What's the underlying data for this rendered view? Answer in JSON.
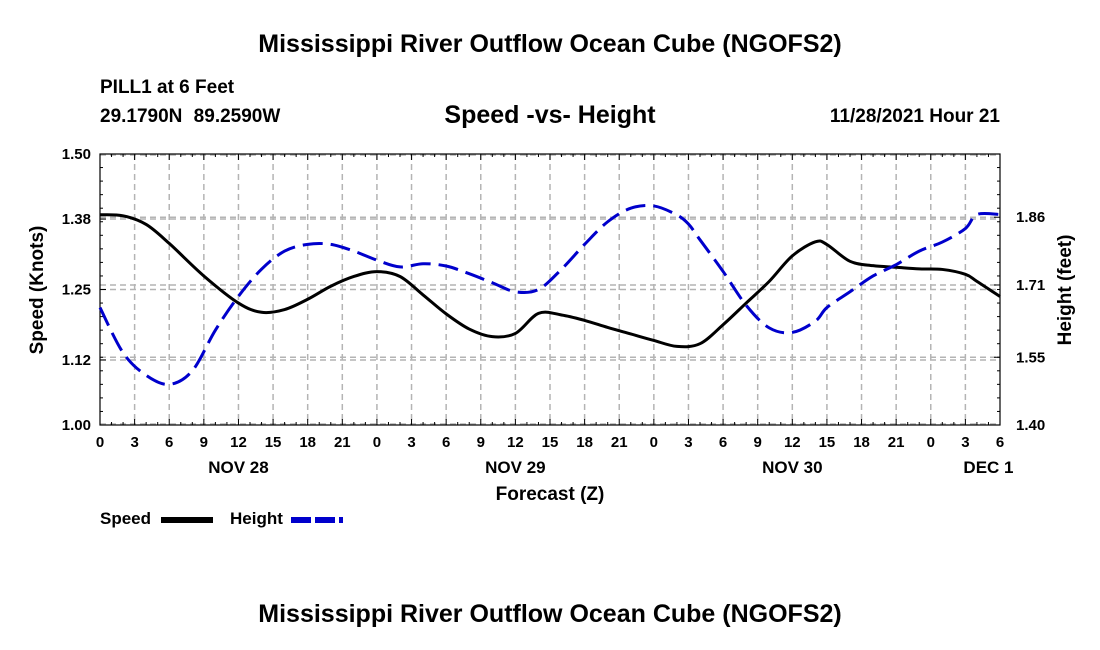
{
  "header": {
    "title": "Mississippi River Outflow Ocean Cube (NGOFS2)",
    "station": "PILL1 at 6 Feet",
    "coordinates": "29.1790N  89.2590W",
    "subtitle": "Speed -vs- Height",
    "datetime": "11/28/2021 Hour 21"
  },
  "footer": {
    "title": "Mississippi River Outflow Ocean Cube (NGOFS2)"
  },
  "legend": {
    "speed_label": "Speed",
    "height_label": "Height"
  },
  "colors": {
    "speed": "#000000",
    "height": "#0000cc",
    "grid": "#b4b4b4"
  },
  "chart_data": {
    "type": "line",
    "title": "Speed -vs- Height",
    "xlabel": "Forecast (Z)",
    "ylabel": "Speed (Knots)",
    "y2label": "Height (feet)",
    "x_unit": "hours from NOV 28 00Z",
    "xlim": [
      0,
      78
    ],
    "ylim": [
      1.0,
      1.5
    ],
    "y2lim": [
      1.4,
      2.0
    ],
    "grid": true,
    "x_ticks": [
      {
        "x": 0,
        "label": "0"
      },
      {
        "x": 3,
        "label": "3"
      },
      {
        "x": 6,
        "label": "6"
      },
      {
        "x": 9,
        "label": "9"
      },
      {
        "x": 12,
        "label": "12"
      },
      {
        "x": 15,
        "label": "15"
      },
      {
        "x": 18,
        "label": "18"
      },
      {
        "x": 21,
        "label": "21"
      },
      {
        "x": 24,
        "label": "0"
      },
      {
        "x": 27,
        "label": "3"
      },
      {
        "x": 30,
        "label": "6"
      },
      {
        "x": 33,
        "label": "9"
      },
      {
        "x": 36,
        "label": "12"
      },
      {
        "x": 39,
        "label": "15"
      },
      {
        "x": 42,
        "label": "18"
      },
      {
        "x": 45,
        "label": "21"
      },
      {
        "x": 48,
        "label": "0"
      },
      {
        "x": 51,
        "label": "3"
      },
      {
        "x": 54,
        "label": "6"
      },
      {
        "x": 57,
        "label": "9"
      },
      {
        "x": 60,
        "label": "12"
      },
      {
        "x": 63,
        "label": "15"
      },
      {
        "x": 66,
        "label": "18"
      },
      {
        "x": 69,
        "label": "21"
      },
      {
        "x": 72,
        "label": "0"
      },
      {
        "x": 75,
        "label": "3"
      },
      {
        "x": 78,
        "label": "6"
      }
    ],
    "day_labels": [
      {
        "x": 12,
        "label": "NOV 28"
      },
      {
        "x": 36,
        "label": "NOV 29"
      },
      {
        "x": 60,
        "label": "NOV 30"
      },
      {
        "x": 77,
        "label": "DEC 1"
      }
    ],
    "y_ticks": [
      1.0,
      1.12,
      1.25,
      1.38,
      1.5
    ],
    "y_tick_labels": [
      "1.00",
      "1.12",
      "1.25",
      "1.38",
      "1.50"
    ],
    "y2_ticks": [
      1.4,
      1.55,
      1.71,
      1.86
    ],
    "y2_tick_labels": [
      "1.40",
      "1.55",
      "1.71",
      "1.86"
    ],
    "series": [
      {
        "name": "Speed",
        "axis": "left",
        "style": "solid",
        "x": [
          0,
          2,
          4,
          6,
          9,
          12,
          14,
          16,
          18,
          20,
          22,
          24,
          26,
          28,
          30,
          32,
          34,
          36,
          38,
          40,
          42,
          44,
          46,
          48,
          50,
          52,
          54,
          56,
          58,
          60,
          62,
          63,
          65,
          67,
          69,
          71,
          73,
          75,
          76,
          78
        ],
        "values": [
          1.388,
          1.386,
          1.37,
          1.335,
          1.275,
          1.225,
          1.208,
          1.213,
          1.232,
          1.256,
          1.274,
          1.283,
          1.274,
          1.24,
          1.205,
          1.177,
          1.163,
          1.169,
          1.206,
          1.203,
          1.193,
          1.18,
          1.168,
          1.156,
          1.145,
          1.15,
          1.185,
          1.225,
          1.265,
          1.312,
          1.338,
          1.333,
          1.302,
          1.294,
          1.291,
          1.288,
          1.287,
          1.278,
          1.265,
          1.237
        ]
      },
      {
        "name": "Height",
        "axis": "right",
        "style": "dashed",
        "x": [
          0,
          2,
          4,
          6,
          8,
          10,
          12,
          14,
          16,
          18,
          20,
          22,
          24,
          26,
          28,
          30,
          32,
          34,
          36,
          38,
          40,
          42,
          44,
          46,
          48,
          50,
          51,
          52,
          54,
          56,
          58,
          60,
          62,
          63,
          65,
          67,
          69,
          71,
          73,
          75,
          76,
          78
        ],
        "values": [
          1.66,
          1.56,
          1.51,
          1.49,
          1.52,
          1.61,
          1.685,
          1.745,
          1.785,
          1.8,
          1.8,
          1.785,
          1.765,
          1.75,
          1.757,
          1.752,
          1.735,
          1.715,
          1.695,
          1.7,
          1.745,
          1.8,
          1.85,
          1.88,
          1.885,
          1.865,
          1.845,
          1.81,
          1.74,
          1.665,
          1.615,
          1.605,
          1.63,
          1.66,
          1.695,
          1.73,
          1.755,
          1.785,
          1.805,
          1.835,
          1.866,
          1.866
        ]
      }
    ]
  }
}
